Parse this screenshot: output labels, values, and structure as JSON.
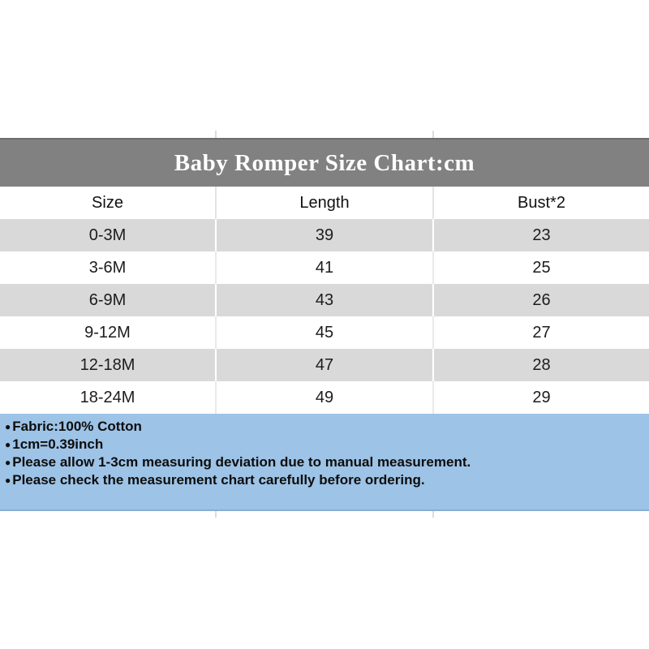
{
  "title_band": {
    "text": "Baby Romper Size Chart:cm",
    "bg_color": "#818181",
    "text_color": "#ffffff"
  },
  "table": {
    "columns": [
      "Size",
      "Length",
      "Bust*2"
    ],
    "rows": [
      [
        "0-3M",
        "39",
        "23"
      ],
      [
        "3-6M",
        "41",
        "25"
      ],
      [
        "6-9M",
        "43",
        "26"
      ],
      [
        "9-12M",
        "45",
        "27"
      ],
      [
        "12-18M",
        "47",
        "28"
      ],
      [
        "18-24M",
        "49",
        "29"
      ]
    ],
    "alt_row_color": "#d9d9d9"
  },
  "notes": {
    "bg_color": "#9dc3e6",
    "bullet": "●",
    "items": [
      "Fabric:100% Cotton",
      "1cm=0.39inch",
      "Please allow 1-3cm measuring deviation due to manual measurement.",
      "Please check the measurement chart carefully before ordering."
    ]
  },
  "chart_data": {
    "type": "table",
    "title": "Baby Romper Size Chart:cm",
    "units": "cm",
    "columns": [
      "Size",
      "Length",
      "Bust*2"
    ],
    "rows": [
      [
        "0-3M",
        39,
        23
      ],
      [
        "3-6M",
        41,
        25
      ],
      [
        "6-9M",
        43,
        26
      ],
      [
        "9-12M",
        45,
        27
      ],
      [
        "12-18M",
        47,
        28
      ],
      [
        "18-24M",
        49,
        29
      ]
    ],
    "notes": [
      "Fabric:100% Cotton",
      "1cm=0.39inch",
      "Please allow 1-3cm measuring deviation due to manual measurement.",
      "Please check the measurement chart carefully before ordering."
    ]
  }
}
